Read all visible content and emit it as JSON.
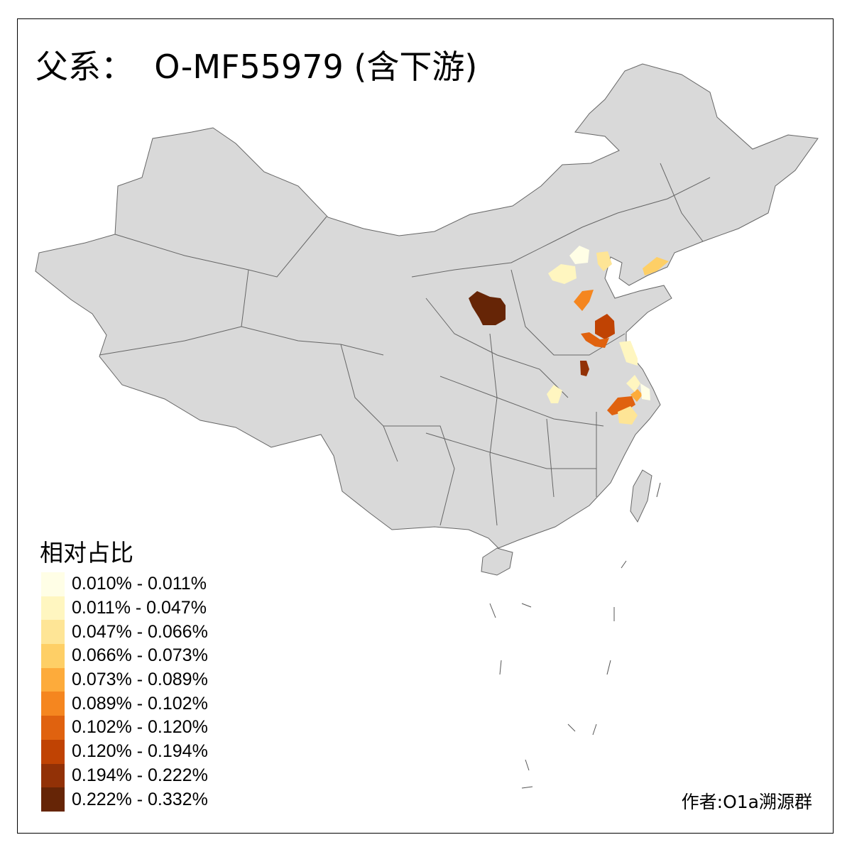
{
  "title": "父系：  O-MF55979 (含下游)",
  "legend": {
    "title": "相对占比",
    "items": [
      {
        "label": "0.010% - 0.011%",
        "color": "#FFFEE6"
      },
      {
        "label": "0.011% - 0.047%",
        "color": "#FFF6C0"
      },
      {
        "label": "0.047% - 0.066%",
        "color": "#FEE596"
      },
      {
        "label": "0.066% - 0.073%",
        "color": "#FECF66"
      },
      {
        "label": "0.073% - 0.089%",
        "color": "#FDAB3B"
      },
      {
        "label": "0.089% - 0.102%",
        "color": "#F5861F"
      },
      {
        "label": "0.102% - 0.120%",
        "color": "#E0620F"
      },
      {
        "label": "0.120% - 0.194%",
        "color": "#C04303"
      },
      {
        "label": "0.194% - 0.222%",
        "color": "#923106"
      },
      {
        "label": "0.222% - 0.332%",
        "color": "#662506"
      }
    ]
  },
  "credit": "作者:O1a溯源群",
  "map_colors": {
    "land": "#D9D9D9",
    "border": "#666666",
    "sea": "#FFFFFF"
  }
}
